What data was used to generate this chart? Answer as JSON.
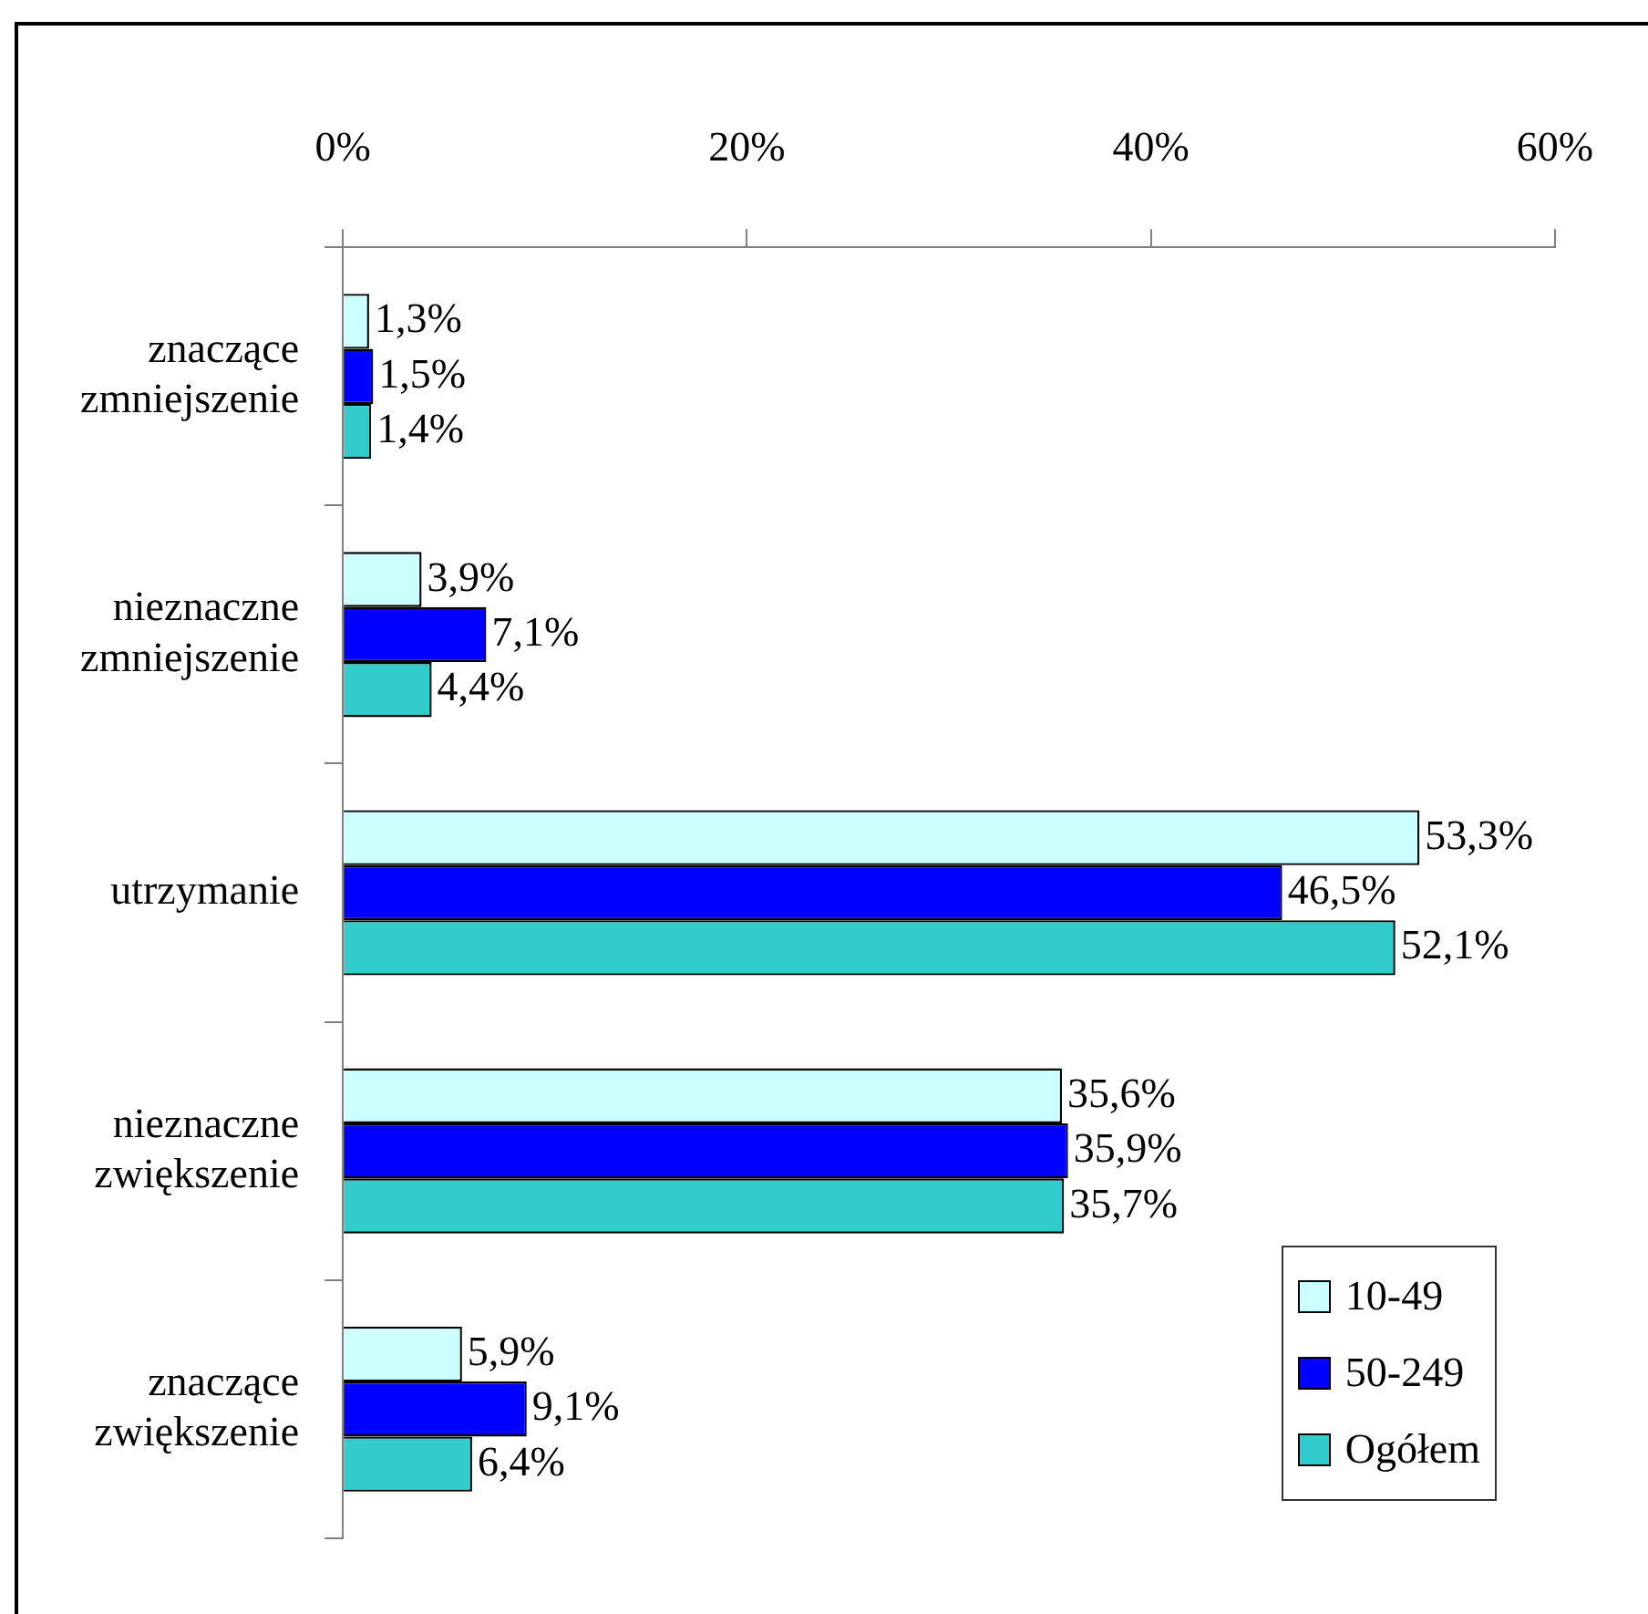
{
  "chart_data": {
    "type": "bar",
    "orientation": "horizontal",
    "categories": [
      "znaczące zmniejszenie",
      "nieznaczne zmniejszenie",
      "utrzymanie",
      "nieznaczne zwiększenie",
      "znaczące zwiększenie"
    ],
    "series": [
      {
        "name": "10-49",
        "color": "#ccffff",
        "values": [
          1.3,
          3.9,
          53.3,
          35.6,
          5.9
        ],
        "value_labels": [
          "1,3%",
          "3,9%",
          "53,3%",
          "35,6%",
          "5,9%"
        ]
      },
      {
        "name": "50-249",
        "color": "#0000ff",
        "values": [
          1.5,
          7.1,
          46.5,
          35.9,
          9.1
        ],
        "value_labels": [
          "1,5%",
          "7,1%",
          "46,5%",
          "35,9%",
          "9,1%"
        ]
      },
      {
        "name": "Ogółem",
        "color": "#33cccc",
        "values": [
          1.4,
          4.4,
          52.1,
          35.7,
          6.4
        ],
        "value_labels": [
          "1,4%",
          "4,4%",
          "52,1%",
          "35,7%",
          "6,4%"
        ]
      }
    ],
    "xlim": [
      0,
      60
    ],
    "xticks": [
      {
        "value": 0,
        "label": "0%"
      },
      {
        "value": 20,
        "label": "20%"
      },
      {
        "value": 40,
        "label": "40%"
      },
      {
        "value": 60,
        "label": "60%"
      }
    ],
    "grid": false,
    "legend": "bottom right"
  }
}
